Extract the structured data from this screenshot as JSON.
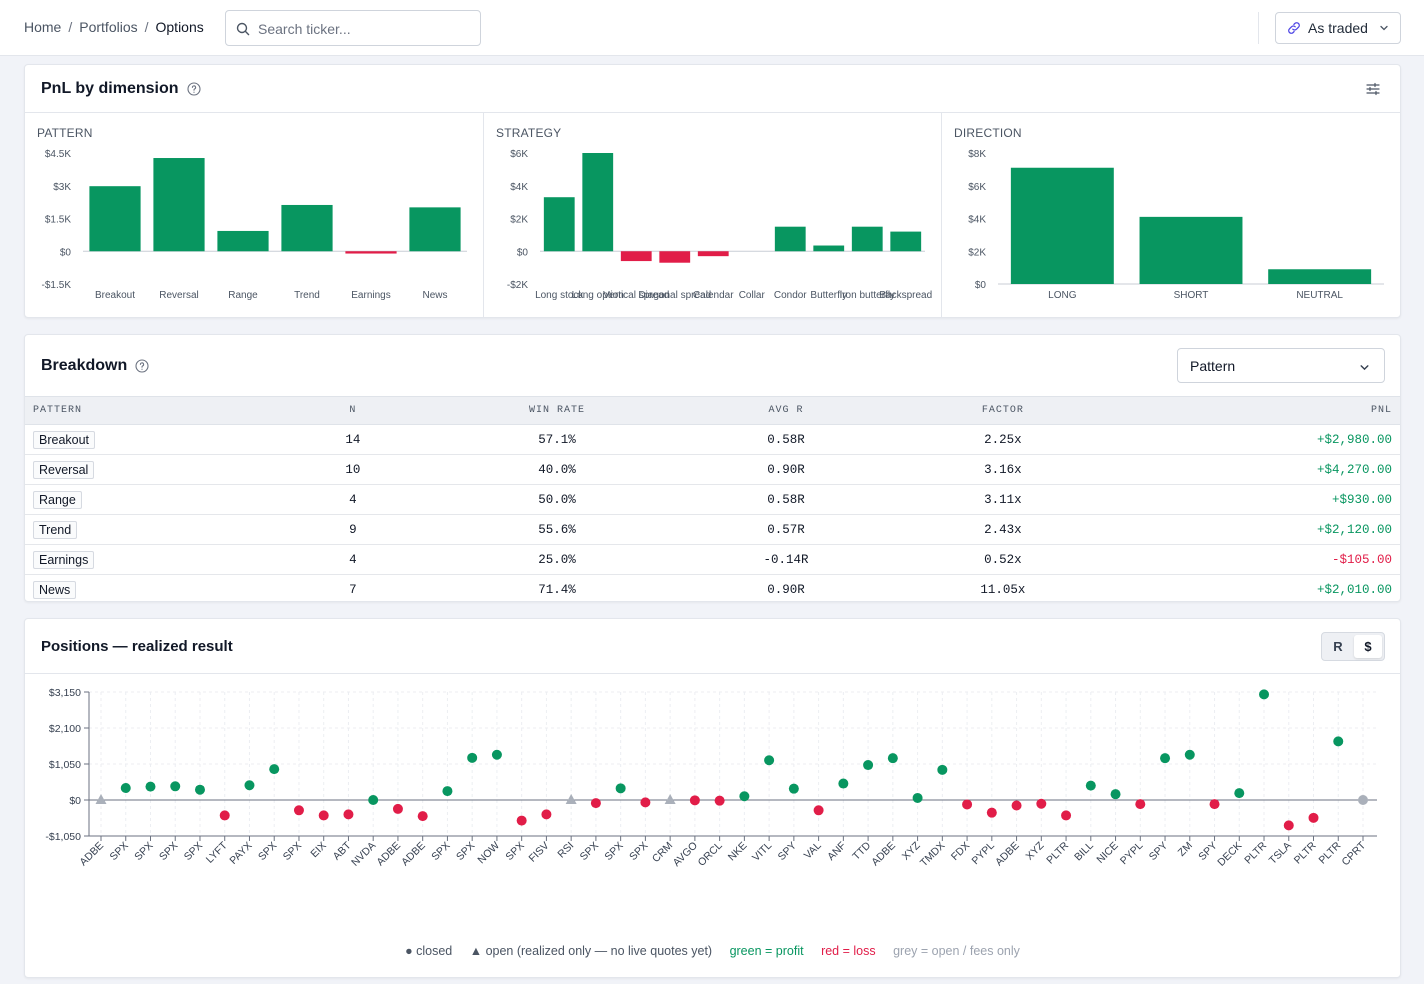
{
  "topbar": {
    "breadcrumb": [
      "Home",
      "Portfolios",
      "Options"
    ],
    "search_placeholder": "Search ticker...",
    "mode_label": "As traded"
  },
  "pnl_card": {
    "title": "PnL by dimension"
  },
  "colors": {
    "profit": "#089660",
    "loss": "#e11d48",
    "open_grey": "#aab0ba"
  },
  "chart_data": [
    {
      "type": "bar",
      "title": "PATTERN",
      "categories": [
        "Breakout",
        "Reversal",
        "Range",
        "Trend",
        "Earnings",
        "News"
      ],
      "values": [
        2980,
        4270,
        930,
        2120,
        -105,
        2010
      ],
      "ylim": [
        -1500,
        4500
      ],
      "yticks": [
        4500,
        3000,
        1500,
        0,
        -1500
      ],
      "ytick_labels": [
        "$4.5K",
        "$3K",
        "$1.5K",
        "$0",
        "-$1.5K"
      ]
    },
    {
      "type": "bar",
      "title": "STRATEGY",
      "categories": [
        "Long stock",
        "Long option",
        "Vertical spread",
        "Diagonal spread",
        "Calendar",
        "Collar",
        "Condor",
        "Butterfly",
        "Iron butterfly",
        "Backspread"
      ],
      "values": [
        3300,
        6000,
        -600,
        -700,
        -300,
        0,
        1500,
        350,
        1500,
        1200
      ],
      "ylim": [
        -2000,
        6000
      ],
      "yticks": [
        6000,
        4000,
        2000,
        0,
        -2000
      ],
      "ytick_labels": [
        "$6K",
        "$4K",
        "$2K",
        "$0",
        "-$2K"
      ]
    },
    {
      "type": "bar",
      "title": "DIRECTION",
      "categories": [
        "LONG",
        "SHORT",
        "NEUTRAL"
      ],
      "values": [
        7100,
        4100,
        900
      ],
      "ylim": [
        0,
        8000
      ],
      "yticks": [
        8000,
        6000,
        4000,
        2000,
        0
      ],
      "ytick_labels": [
        "$8K",
        "$6K",
        "$4K",
        "$2K",
        "$0"
      ]
    },
    {
      "type": "scatter",
      "title": "Positions — realized result",
      "ylim": [
        -1050,
        3150
      ],
      "yticks": [
        3150,
        2100,
        1050,
        0,
        -1050
      ],
      "ytick_labels": [
        "$3,150",
        "$2,100",
        "$1,050",
        "$0",
        "-$1,050"
      ],
      "points": [
        {
          "ticker": "ADBE",
          "pnl": 0,
          "status": "open"
        },
        {
          "ticker": "SPX",
          "pnl": 350,
          "status": "closed"
        },
        {
          "ticker": "SPX",
          "pnl": 390,
          "status": "closed"
        },
        {
          "ticker": "SPX",
          "pnl": 400,
          "status": "closed"
        },
        {
          "ticker": "SPX",
          "pnl": 300,
          "status": "closed"
        },
        {
          "ticker": "LYFT",
          "pnl": -450,
          "status": "closed"
        },
        {
          "ticker": "PAYX",
          "pnl": 430,
          "status": "closed"
        },
        {
          "ticker": "SPX",
          "pnl": 900,
          "status": "closed"
        },
        {
          "ticker": "SPX",
          "pnl": -300,
          "status": "closed"
        },
        {
          "ticker": "EIX",
          "pnl": -450,
          "status": "closed"
        },
        {
          "ticker": "ABT",
          "pnl": -420,
          "status": "closed"
        },
        {
          "ticker": "NVDA",
          "pnl": 0,
          "status": "closed"
        },
        {
          "ticker": "ADBE",
          "pnl": -260,
          "status": "closed"
        },
        {
          "ticker": "ADBE",
          "pnl": -470,
          "status": "closed"
        },
        {
          "ticker": "SPX",
          "pnl": 260,
          "status": "closed"
        },
        {
          "ticker": "SPX",
          "pnl": 1230,
          "status": "closed"
        },
        {
          "ticker": "NOW",
          "pnl": 1320,
          "status": "closed"
        },
        {
          "ticker": "SPX",
          "pnl": -600,
          "status": "closed"
        },
        {
          "ticker": "FISV",
          "pnl": -420,
          "status": "closed"
        },
        {
          "ticker": "RSI",
          "pnl": 0,
          "status": "open"
        },
        {
          "ticker": "SPX",
          "pnl": -90,
          "status": "closed"
        },
        {
          "ticker": "SPX",
          "pnl": 340,
          "status": "closed"
        },
        {
          "ticker": "SPX",
          "pnl": -70,
          "status": "closed"
        },
        {
          "ticker": "CRM",
          "pnl": 0,
          "status": "open"
        },
        {
          "ticker": "AVGO",
          "pnl": -10,
          "status": "closed"
        },
        {
          "ticker": "ORCL",
          "pnl": -20,
          "status": "closed"
        },
        {
          "ticker": "NKE",
          "pnl": 110,
          "status": "closed"
        },
        {
          "ticker": "VITL",
          "pnl": 1160,
          "status": "closed"
        },
        {
          "ticker": "SPY",
          "pnl": 330,
          "status": "closed"
        },
        {
          "ticker": "VAL",
          "pnl": -300,
          "status": "closed"
        },
        {
          "ticker": "ANF",
          "pnl": 480,
          "status": "closed"
        },
        {
          "ticker": "TTD",
          "pnl": 1020,
          "status": "closed"
        },
        {
          "ticker": "ADBE",
          "pnl": 1220,
          "status": "closed"
        },
        {
          "ticker": "XYZ",
          "pnl": 60,
          "status": "closed"
        },
        {
          "ticker": "TMDX",
          "pnl": 880,
          "status": "closed"
        },
        {
          "ticker": "FDX",
          "pnl": -130,
          "status": "closed"
        },
        {
          "ticker": "PYPL",
          "pnl": -370,
          "status": "closed"
        },
        {
          "ticker": "ADBE",
          "pnl": -160,
          "status": "closed"
        },
        {
          "ticker": "XYZ",
          "pnl": -110,
          "status": "closed"
        },
        {
          "ticker": "PLTR",
          "pnl": -450,
          "status": "closed"
        },
        {
          "ticker": "BILL",
          "pnl": 420,
          "status": "closed"
        },
        {
          "ticker": "NICE",
          "pnl": 170,
          "status": "closed"
        },
        {
          "ticker": "PYPL",
          "pnl": -120,
          "status": "closed"
        },
        {
          "ticker": "SPY",
          "pnl": 1220,
          "status": "closed"
        },
        {
          "ticker": "ZM",
          "pnl": 1320,
          "status": "closed"
        },
        {
          "ticker": "SPY",
          "pnl": -120,
          "status": "closed"
        },
        {
          "ticker": "DECK",
          "pnl": 200,
          "status": "closed"
        },
        {
          "ticker": "PLTR",
          "pnl": 3080,
          "status": "closed"
        },
        {
          "ticker": "TSLA",
          "pnl": -740,
          "status": "closed"
        },
        {
          "ticker": "PLTR",
          "pnl": -520,
          "status": "closed"
        },
        {
          "ticker": "PLTR",
          "pnl": 1710,
          "status": "closed"
        },
        {
          "ticker": "CPRT",
          "pnl": 0,
          "status": "closed_fees"
        }
      ]
    }
  ],
  "breakdown": {
    "title": "Breakdown",
    "group_by": "Pattern",
    "columns": [
      "PATTERN",
      "N",
      "WIN RATE",
      "AVG R",
      "FACTOR",
      "PNL"
    ],
    "rows": [
      {
        "name": "Breakout",
        "n": "14",
        "win_rate": "57.1%",
        "avg_r": "0.58R",
        "factor": "2.25x",
        "pnl": "+$2,980.00",
        "sign": "pos"
      },
      {
        "name": "Reversal",
        "n": "10",
        "win_rate": "40.0%",
        "avg_r": "0.90R",
        "factor": "3.16x",
        "pnl": "+$4,270.00",
        "sign": "pos"
      },
      {
        "name": "Range",
        "n": "4",
        "win_rate": "50.0%",
        "avg_r": "0.58R",
        "factor": "3.11x",
        "pnl": "+$930.00",
        "sign": "pos"
      },
      {
        "name": "Trend",
        "n": "9",
        "win_rate": "55.6%",
        "avg_r": "0.57R",
        "factor": "2.43x",
        "pnl": "+$2,120.00",
        "sign": "pos"
      },
      {
        "name": "Earnings",
        "n": "4",
        "win_rate": "25.0%",
        "avg_r": "-0.14R",
        "factor": "0.52x",
        "pnl": "-$105.00",
        "sign": "neg"
      },
      {
        "name": "News",
        "n": "7",
        "win_rate": "71.4%",
        "avg_r": "0.90R",
        "factor": "11.05x",
        "pnl": "+$2,010.00",
        "sign": "pos"
      }
    ]
  },
  "positions": {
    "title": "Positions — realized result",
    "toggle": {
      "r_label": "R",
      "dollar_label": "$",
      "active": "$"
    },
    "legend": {
      "closed": "● closed",
      "open": "▲ open (realized only — no live quotes yet)",
      "green": "green = profit",
      "red": "red = loss",
      "grey": "grey = open / fees only"
    }
  }
}
